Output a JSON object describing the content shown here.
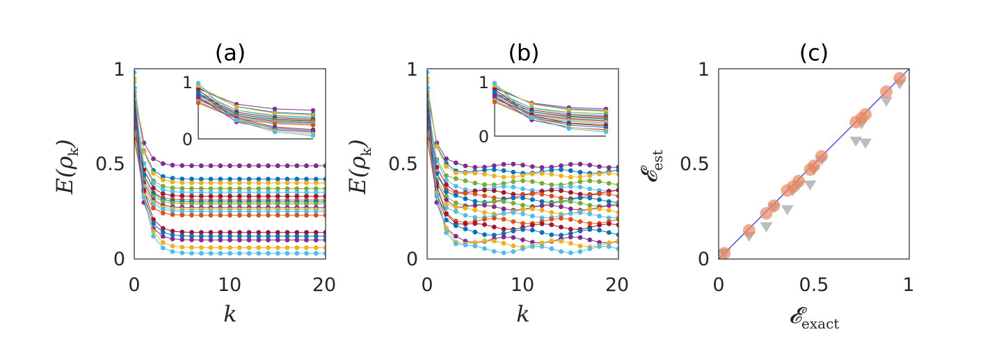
{
  "chart_data": [
    {
      "type": "line",
      "title": "(a)",
      "xlabel": "k",
      "ylabel": "E(ρ_k)",
      "xlim": [
        0,
        20
      ],
      "ylim": [
        0,
        1
      ],
      "xticks": [
        "0",
        "10",
        "20"
      ],
      "yticks": [
        "0",
        "0.5",
        "1"
      ],
      "x": [
        0,
        1,
        2,
        3,
        4,
        5,
        6,
        7,
        8,
        9,
        10,
        11,
        12,
        13,
        14,
        15,
        16,
        17,
        18,
        19,
        20
      ],
      "series": [
        {
          "color": "#7E2F8E",
          "initial": 0.88,
          "final": 0.49
        },
        {
          "color": "#0072BD",
          "initial": 0.9,
          "final": 0.42
        },
        {
          "color": "#EDB120",
          "initial": 0.93,
          "final": 0.4
        },
        {
          "color": "#77AC30",
          "initial": 0.8,
          "final": 0.37
        },
        {
          "color": "#4DBEEE",
          "initial": 0.84,
          "final": 0.35
        },
        {
          "color": "#A2142F",
          "initial": 0.78,
          "final": 0.33
        },
        {
          "color": "#D95319",
          "initial": 0.72,
          "final": 0.31
        },
        {
          "color": "#0072BD",
          "initial": 0.76,
          "final": 0.3
        },
        {
          "color": "#77AC30",
          "initial": 0.7,
          "final": 0.29
        },
        {
          "color": "#7E2F8E",
          "initial": 0.69,
          "final": 0.27
        },
        {
          "color": "#EDB120",
          "initial": 0.66,
          "final": 0.26
        },
        {
          "color": "#4DBEEE",
          "initial": 0.64,
          "final": 0.25
        },
        {
          "color": "#D95319",
          "initial": 0.63,
          "final": 0.23
        },
        {
          "color": "#A2142F",
          "initial": 0.86,
          "final": 0.14
        },
        {
          "color": "#0072BD",
          "initial": 0.82,
          "final": 0.12
        },
        {
          "color": "#7E2F8E",
          "initial": 0.74,
          "final": 0.1
        },
        {
          "color": "#EDB120",
          "initial": 0.95,
          "final": 0.06
        },
        {
          "color": "#4DBEEE",
          "initial": 0.98,
          "final": 0.03
        }
      ],
      "inset": {
        "ylim": [
          0,
          1
        ],
        "yticks": [
          "0",
          "1"
        ]
      }
    },
    {
      "type": "line",
      "title": "(b)",
      "xlabel": "k",
      "ylabel": "E(ρ_k)",
      "xlim": [
        0,
        20
      ],
      "ylim": [
        0,
        1
      ],
      "xticks": [
        "0",
        "10",
        "20"
      ],
      "yticks": [
        "0",
        "0.5",
        "1"
      ],
      "x": [
        0,
        1,
        2,
        3,
        4,
        5,
        6,
        7,
        8,
        9,
        10,
        11,
        12,
        13,
        14,
        15,
        16,
        17,
        18,
        19,
        20
      ],
      "series": [
        {
          "color": "#7E2F8E",
          "initial": 0.88,
          "final": 0.49
        },
        {
          "color": "#0072BD",
          "initial": 0.9,
          "final": 0.46
        },
        {
          "color": "#EDB120",
          "initial": 0.93,
          "final": 0.44
        },
        {
          "color": "#77AC30",
          "initial": 0.8,
          "final": 0.4
        },
        {
          "color": "#4DBEEE",
          "initial": 0.84,
          "final": 0.37
        },
        {
          "color": "#A2142F",
          "initial": 0.78,
          "final": 0.35
        },
        {
          "color": "#D95319",
          "initial": 0.72,
          "final": 0.33
        },
        {
          "color": "#0072BD",
          "initial": 0.76,
          "final": 0.31
        },
        {
          "color": "#77AC30",
          "initial": 0.7,
          "final": 0.29
        },
        {
          "color": "#7E2F8E",
          "initial": 0.69,
          "final": 0.27
        },
        {
          "color": "#EDB120",
          "initial": 0.66,
          "final": 0.25
        },
        {
          "color": "#4DBEEE",
          "initial": 0.64,
          "final": 0.23
        },
        {
          "color": "#D95319",
          "initial": 0.63,
          "final": 0.2
        },
        {
          "color": "#A2142F",
          "initial": 0.86,
          "final": 0.17
        },
        {
          "color": "#0072BD",
          "initial": 0.82,
          "final": 0.14
        },
        {
          "color": "#7E2F8E",
          "initial": 0.74,
          "final": 0.1
        },
        {
          "color": "#EDB120",
          "initial": 0.95,
          "final": 0.08
        },
        {
          "color": "#4DBEEE",
          "initial": 0.98,
          "final": 0.05
        }
      ],
      "inset": {
        "ylim": [
          0,
          1
        ],
        "yticks": [
          "0",
          "1"
        ]
      }
    },
    {
      "type": "scatter",
      "title": "(c)",
      "xlabel": "𝓔_exact",
      "ylabel": "𝓔_est",
      "xlim": [
        0,
        1
      ],
      "ylim": [
        0,
        1
      ],
      "xticks": [
        "0",
        "0.5",
        "1"
      ],
      "yticks": [
        "0",
        "0.5",
        "1"
      ],
      "reference_line": {
        "color": "#0000FF",
        "from": [
          0,
          0
        ],
        "to": [
          1,
          1
        ]
      },
      "circles": {
        "color": "#E8865F",
        "points": [
          [
            0.03,
            0.03
          ],
          [
            0.16,
            0.15
          ],
          [
            0.25,
            0.24
          ],
          [
            0.29,
            0.28
          ],
          [
            0.36,
            0.36
          ],
          [
            0.39,
            0.38
          ],
          [
            0.42,
            0.41
          ],
          [
            0.48,
            0.47
          ],
          [
            0.5,
            0.49
          ],
          [
            0.54,
            0.54
          ],
          [
            0.72,
            0.72
          ],
          [
            0.75,
            0.74
          ],
          [
            0.77,
            0.76
          ],
          [
            0.88,
            0.88
          ],
          [
            0.95,
            0.95
          ]
        ]
      },
      "triangles": {
        "color": "#A6A6A6",
        "points": [
          [
            0.03,
            0.03
          ],
          [
            0.16,
            0.12
          ],
          [
            0.25,
            0.17
          ],
          [
            0.29,
            0.27
          ],
          [
            0.36,
            0.26
          ],
          [
            0.39,
            0.36
          ],
          [
            0.42,
            0.39
          ],
          [
            0.48,
            0.39
          ],
          [
            0.5,
            0.47
          ],
          [
            0.54,
            0.52
          ],
          [
            0.72,
            0.62
          ],
          [
            0.75,
            0.71
          ],
          [
            0.77,
            0.61
          ],
          [
            0.88,
            0.83
          ],
          [
            0.95,
            0.92
          ]
        ]
      }
    }
  ]
}
